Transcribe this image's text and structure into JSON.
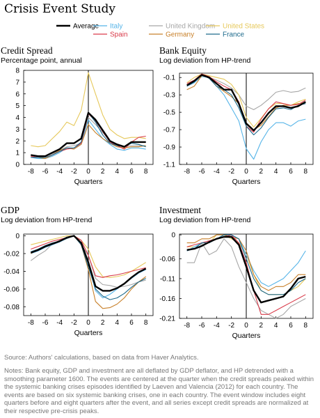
{
  "title": "Crisis Event Study",
  "legend": [
    {
      "name": "Average",
      "color": "#000000"
    },
    {
      "name": "Italy",
      "color": "#55b4e8"
    },
    {
      "name": "United Kingdom",
      "color": "#a6a6a6"
    },
    {
      "name": "United States",
      "color": "#e6c85a"
    },
    {
      "name": "Spain",
      "color": "#d93b4a"
    },
    {
      "name": "Germany",
      "color": "#c8802a"
    },
    {
      "name": "France",
      "color": "#1d6a8c"
    }
  ],
  "source": "Source: Authors' calculations, based on data from Haver Analytics.",
  "notes": "Notes: Bank equity, GDP and investment are all deflated by GDP deflator, and HP detrended with a smoothing parameter 1600. The events are centered at the quarter when the credit spreads peaked within the systemic banking crises episodes identified by Laeven and Valencia (2012) for each country. The events are based on six systemic banking crises, one in each country. The event window includes eight quarters before and eight quarters after the event, and all series except credit spreads are normalized at their respective pre-crisis peaks.",
  "chart_data": [
    {
      "type": "line",
      "title": "Credit Spread",
      "subtitle": "Percentage point, annual",
      "xlabel": "Quarters",
      "x": [
        -8,
        -7,
        -6,
        -5,
        -4,
        -3,
        -2,
        -1,
        0,
        1,
        2,
        3,
        4,
        5,
        6,
        7,
        8
      ],
      "xticks": [
        -8,
        -6,
        -4,
        -2,
        0,
        2,
        4,
        6,
        8
      ],
      "ylim": [
        0,
        8
      ],
      "yticks": [
        0,
        1,
        2,
        3,
        4,
        5,
        6,
        7,
        8
      ],
      "ytick_labels": [
        "0",
        "1",
        "2",
        "3",
        "4",
        "5",
        "6",
        "7",
        "8"
      ],
      "series": [
        {
          "name": "United Kingdom",
          "values": [
            0.8,
            0.7,
            0.7,
            0.9,
            1.2,
            1.5,
            1.6,
            1.8,
            4.0,
            3.4,
            2.7,
            2.0,
            1.6,
            1.5,
            1.6,
            1.6,
            1.6
          ]
        },
        {
          "name": "United States",
          "values": [
            1.6,
            1.5,
            1.6,
            2.2,
            2.8,
            3.6,
            3.3,
            4.6,
            7.8,
            6.0,
            4.2,
            3.0,
            2.5,
            2.2,
            2.3,
            2.3,
            2.2
          ]
        },
        {
          "name": "Italy",
          "values": [
            0.6,
            0.5,
            0.5,
            0.7,
            1.0,
            1.4,
            1.4,
            1.7,
            3.8,
            3.0,
            2.2,
            1.7,
            1.3,
            1.2,
            1.4,
            1.4,
            1.3
          ]
        },
        {
          "name": "Germany",
          "values": [
            0.6,
            0.6,
            0.5,
            0.8,
            1.2,
            1.4,
            1.3,
            1.7,
            3.4,
            2.7,
            2.2,
            1.8,
            1.5,
            1.4,
            1.5,
            1.5,
            1.6
          ]
        },
        {
          "name": "Spain",
          "values": [
            0.7,
            0.6,
            0.6,
            0.8,
            1.1,
            1.3,
            1.4,
            1.8,
            4.3,
            3.7,
            2.8,
            1.9,
            1.6,
            1.3,
            1.9,
            2.3,
            2.4
          ]
        },
        {
          "name": "France",
          "values": [
            0.6,
            0.6,
            0.6,
            0.8,
            1.1,
            1.4,
            1.4,
            1.9,
            4.4,
            3.6,
            2.5,
            1.8,
            1.6,
            1.5,
            1.8,
            1.7,
            1.5
          ]
        },
        {
          "name": "Average",
          "values": [
            0.8,
            0.7,
            0.7,
            1.0,
            1.3,
            1.8,
            1.8,
            2.2,
            4.4,
            3.8,
            2.9,
            2.0,
            1.7,
            1.5,
            1.9,
            1.9,
            1.9
          ]
        }
      ]
    },
    {
      "type": "line",
      "title": "Bank Equity",
      "subtitle": "Log deviation from HP-trend",
      "xlabel": "Quarters",
      "x": [
        -8,
        -7,
        -6,
        -5,
        -4,
        -3,
        -2,
        -1,
        0,
        1,
        2,
        3,
        4,
        5,
        6,
        7,
        8
      ],
      "xticks": [
        -8,
        -6,
        -4,
        -2,
        0,
        2,
        4,
        6,
        8
      ],
      "ylim": [
        -1.1,
        -0.05
      ],
      "yticks": [
        -0.1,
        -0.3,
        -0.5,
        -0.7,
        -0.9,
        -1.1
      ],
      "ytick_labels": [
        "-0.1",
        "-0.3",
        "-0.5",
        "-0.7",
        "-0.9",
        "-1.1"
      ],
      "series": [
        {
          "name": "United Kingdom",
          "values": [
            -0.2,
            -0.16,
            -0.06,
            -0.1,
            -0.13,
            -0.17,
            -0.22,
            -0.3,
            -0.43,
            -0.47,
            -0.42,
            -0.35,
            -0.27,
            -0.25,
            -0.27,
            -0.26,
            -0.22
          ]
        },
        {
          "name": "United States",
          "values": [
            -0.16,
            -0.1,
            -0.06,
            -0.08,
            -0.1,
            -0.12,
            -0.18,
            -0.3,
            -0.56,
            -0.67,
            -0.57,
            -0.46,
            -0.4,
            -0.4,
            -0.42,
            -0.38,
            -0.35
          ]
        },
        {
          "name": "Italy",
          "values": [
            -0.2,
            -0.16,
            -0.09,
            -0.1,
            -0.2,
            -0.3,
            -0.45,
            -0.6,
            -0.92,
            -1.04,
            -0.84,
            -0.7,
            -0.62,
            -0.62,
            -0.66,
            -0.6,
            -0.58
          ]
        },
        {
          "name": "Germany",
          "values": [
            -0.24,
            -0.2,
            -0.08,
            -0.1,
            -0.2,
            -0.26,
            -0.32,
            -0.4,
            -0.62,
            -0.7,
            -0.65,
            -0.55,
            -0.45,
            -0.42,
            -0.42,
            -0.4,
            -0.39
          ]
        },
        {
          "name": "Spain",
          "values": [
            -0.17,
            -0.13,
            -0.06,
            -0.09,
            -0.15,
            -0.2,
            -0.24,
            -0.38,
            -0.66,
            -0.73,
            -0.58,
            -0.46,
            -0.38,
            -0.4,
            -0.42,
            -0.41,
            -0.36
          ]
        },
        {
          "name": "France",
          "values": [
            -0.2,
            -0.15,
            -0.07,
            -0.11,
            -0.2,
            -0.24,
            -0.3,
            -0.45,
            -0.66,
            -0.76,
            -0.68,
            -0.56,
            -0.46,
            -0.45,
            -0.47,
            -0.42,
            -0.4
          ]
        },
        {
          "name": "Average",
          "values": [
            -0.19,
            -0.14,
            -0.07,
            -0.1,
            -0.17,
            -0.24,
            -0.24,
            -0.4,
            -0.63,
            -0.71,
            -0.62,
            -0.51,
            -0.43,
            -0.43,
            -0.45,
            -0.43,
            -0.38
          ]
        }
      ]
    },
    {
      "type": "line",
      "title": "GDP",
      "subtitle": "Log deviation from HP-trend",
      "xlabel": "Quarters",
      "x": [
        -8,
        -7,
        -6,
        -5,
        -4,
        -3,
        -2,
        -1,
        0,
        1,
        2,
        3,
        4,
        5,
        6,
        7,
        8
      ],
      "xticks": [
        -8,
        -6,
        -4,
        -2,
        0,
        2,
        4,
        6,
        8
      ],
      "ylim": [
        -0.09,
        0.002
      ],
      "yticks": [
        0,
        -0.02,
        -0.04,
        -0.06,
        -0.08
      ],
      "ytick_labels": [
        "0",
        "-0.02",
        "-0.04",
        "-0.06",
        "-0.08"
      ],
      "series": [
        {
          "name": "United Kingdom",
          "values": [
            -0.028,
            -0.022,
            -0.017,
            -0.009,
            -0.005,
            -0.002,
            0,
            -0.01,
            -0.022,
            -0.048,
            -0.055,
            -0.056,
            -0.058,
            -0.057,
            -0.055,
            -0.052,
            -0.05
          ]
        },
        {
          "name": "United States",
          "values": [
            -0.01,
            -0.008,
            -0.006,
            -0.004,
            -0.002,
            0,
            0,
            -0.005,
            -0.015,
            -0.035,
            -0.046,
            -0.047,
            -0.046,
            -0.044,
            -0.04,
            -0.035,
            -0.03
          ]
        },
        {
          "name": "Italy",
          "values": [
            -0.02,
            -0.017,
            -0.013,
            -0.01,
            -0.007,
            -0.003,
            0,
            -0.01,
            -0.03,
            -0.062,
            -0.07,
            -0.066,
            -0.06,
            -0.054,
            -0.048,
            -0.042,
            -0.038
          ]
        },
        {
          "name": "Germany",
          "values": [
            -0.02,
            -0.015,
            -0.012,
            -0.009,
            -0.006,
            -0.003,
            0,
            -0.01,
            -0.038,
            -0.074,
            -0.082,
            -0.081,
            -0.077,
            -0.07,
            -0.06,
            -0.052,
            -0.046
          ]
        },
        {
          "name": "Spain",
          "values": [
            -0.015,
            -0.012,
            -0.009,
            -0.006,
            -0.004,
            -0.002,
            0,
            -0.005,
            -0.022,
            -0.045,
            -0.047,
            -0.045,
            -0.044,
            -0.042,
            -0.04,
            -0.038,
            -0.036
          ]
        },
        {
          "name": "France",
          "values": [
            -0.018,
            -0.015,
            -0.011,
            -0.008,
            -0.006,
            -0.003,
            0,
            -0.01,
            -0.035,
            -0.06,
            -0.068,
            -0.072,
            -0.07,
            -0.065,
            -0.058,
            -0.052,
            -0.048
          ]
        },
        {
          "name": "Average",
          "values": [
            -0.019,
            -0.016,
            -0.012,
            -0.009,
            -0.006,
            -0.002,
            0,
            -0.008,
            -0.03,
            -0.057,
            -0.062,
            -0.062,
            -0.059,
            -0.054,
            -0.047,
            -0.041,
            -0.037
          ]
        }
      ]
    },
    {
      "type": "line",
      "title": "Investment",
      "subtitle": "Log deviation from HP-trend",
      "xlabel": "Quarters",
      "x": [
        -8,
        -7,
        -6,
        -5,
        -4,
        -3,
        -2,
        -1,
        0,
        1,
        2,
        3,
        4,
        5,
        6,
        7,
        8
      ],
      "xticks": [
        -8,
        -6,
        -4,
        -2,
        0,
        2,
        4,
        6,
        8
      ],
      "ylim": [
        -0.21,
        0.002
      ],
      "yticks": [
        0,
        -0.06,
        -0.11,
        -0.16,
        -0.21
      ],
      "ytick_labels": [
        "0",
        "-0.06",
        "-0.11",
        "-0.16",
        "-0.21"
      ],
      "series": [
        {
          "name": "United Kingdom",
          "values": [
            -0.07,
            -0.07,
            -0.02,
            -0.05,
            -0.04,
            -0.01,
            -0.03,
            -0.08,
            -0.12,
            -0.16,
            -0.19,
            -0.2,
            -0.21,
            -0.2,
            -0.18,
            -0.17,
            -0.16
          ]
        },
        {
          "name": "United States",
          "values": [
            -0.03,
            -0.03,
            -0.02,
            -0.02,
            0,
            0,
            -0.01,
            -0.02,
            -0.05,
            -0.1,
            -0.14,
            -0.15,
            -0.15,
            -0.15,
            -0.14,
            -0.13,
            -0.11
          ]
        },
        {
          "name": "Italy",
          "values": [
            -0.04,
            -0.03,
            -0.02,
            -0.015,
            -0.01,
            0,
            0,
            -0.01,
            -0.05,
            -0.09,
            -0.12,
            -0.13,
            -0.12,
            -0.11,
            -0.09,
            -0.07,
            -0.04
          ]
        },
        {
          "name": "Germany",
          "values": [
            -0.02,
            -0.02,
            -0.01,
            -0.01,
            0,
            0,
            -0.005,
            -0.01,
            -0.04,
            -0.1,
            -0.13,
            -0.14,
            -0.13,
            -0.13,
            -0.12,
            -0.1,
            -0.1
          ]
        },
        {
          "name": "Spain",
          "values": [
            -0.03,
            -0.025,
            -0.02,
            -0.015,
            -0.01,
            -0.005,
            0,
            -0.02,
            -0.07,
            -0.14,
            -0.2,
            -0.2,
            -0.19,
            -0.18,
            -0.17,
            -0.16,
            -0.15
          ]
        },
        {
          "name": "France",
          "values": [
            -0.04,
            -0.035,
            -0.02,
            -0.02,
            -0.01,
            0,
            0,
            -0.01,
            -0.06,
            -0.11,
            -0.14,
            -0.15,
            -0.15,
            -0.15,
            -0.14,
            -0.12,
            -0.11
          ]
        },
        {
          "name": "Average",
          "values": [
            -0.038,
            -0.035,
            -0.028,
            -0.018,
            -0.01,
            -0.005,
            -0.005,
            -0.025,
            -0.08,
            -0.14,
            -0.17,
            -0.165,
            -0.16,
            -0.155,
            -0.135,
            -0.11,
            -0.105
          ]
        }
      ]
    }
  ]
}
